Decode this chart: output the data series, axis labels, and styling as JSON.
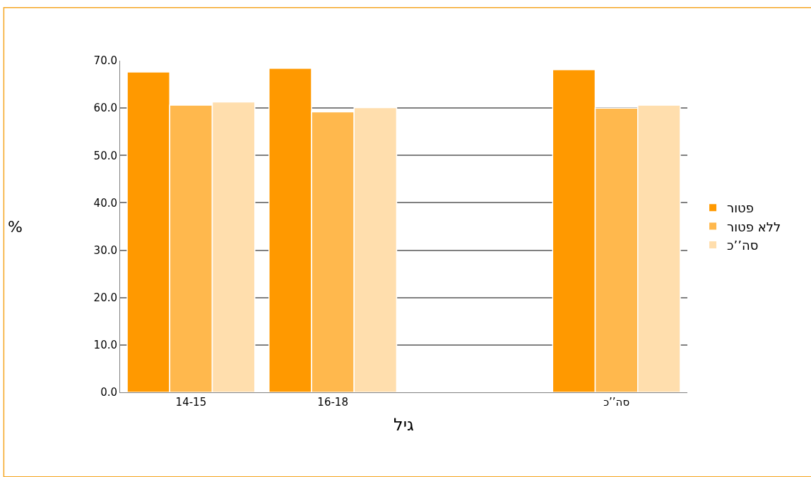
{
  "chart_data": {
    "type": "bar",
    "xlabel": "גיל",
    "ylabel": "%",
    "categories": [
      "14-15",
      "16-18",
      null,
      "סה’’כ"
    ],
    "series": [
      {
        "name": "פטור",
        "color": "#ff9900",
        "values": [
          67.6,
          68.4,
          null,
          68.1
        ]
      },
      {
        "name": "ללא פטור",
        "color": "#ffb84d",
        "values": [
          60.6,
          59.2,
          null,
          60.0
        ]
      },
      {
        "name": "סה’’כ",
        "color": "#ffdead",
        "values": [
          61.3,
          60.1,
          null,
          60.6
        ]
      }
    ],
    "ylim": [
      0,
      70
    ],
    "yticks": [
      {
        "value": 0,
        "label": "0.0"
      },
      {
        "value": 10,
        "label": "10.0"
      },
      {
        "value": 20,
        "label": "20.0"
      },
      {
        "value": 30,
        "label": "30.0"
      },
      {
        "value": 40,
        "label": "40.0"
      },
      {
        "value": 50,
        "label": "50.0"
      },
      {
        "value": 60,
        "label": "60.0"
      },
      {
        "value": 70,
        "label": "70.0"
      }
    ],
    "grid": "y",
    "legend": "right"
  }
}
